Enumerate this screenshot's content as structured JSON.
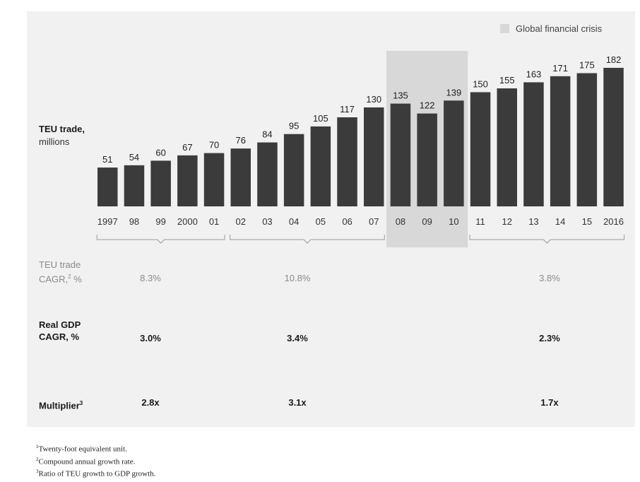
{
  "legend": {
    "label": "Global financial crisis",
    "color": "#d8d8d8"
  },
  "chart_data": {
    "type": "bar",
    "ylabel_title": "TEU trade,",
    "ylabel_unit": "millions",
    "categories": [
      "1997",
      "98",
      "99",
      "2000",
      "01",
      "02",
      "03",
      "04",
      "05",
      "06",
      "07",
      "08",
      "09",
      "10",
      "11",
      "12",
      "13",
      "14",
      "15",
      "2016"
    ],
    "values": [
      51,
      54,
      60,
      67,
      70,
      76,
      84,
      95,
      105,
      117,
      130,
      135,
      122,
      139,
      150,
      155,
      163,
      171,
      175,
      182
    ],
    "highlight_range": [
      "08",
      "10"
    ],
    "bar_color": "#3b3b3b",
    "ylim": [
      0,
      190
    ]
  },
  "rows": {
    "teu": {
      "label_line1": "TEU trade",
      "label_line2": "CAGR,",
      "label_sup": "2",
      "label_unit": " %",
      "values": [
        "8.3%",
        "10.8%",
        "3.8%"
      ]
    },
    "gdp": {
      "label_line1": "Real GDP",
      "label_line2": "CAGR, %",
      "values": [
        "3.0%",
        "3.4%",
        "2.3%"
      ]
    },
    "multiplier": {
      "label": "Multiplier",
      "label_sup": "3",
      "values": [
        "2.8x",
        "3.1x",
        "1.7x"
      ]
    }
  },
  "footnotes": [
    {
      "mark": "1",
      "text": "Twenty-foot equivalent unit."
    },
    {
      "mark": "2",
      "text": "Compound annual growth rate."
    },
    {
      "mark": "3",
      "text": "Ratio of TEU growth to GDP growth."
    }
  ]
}
